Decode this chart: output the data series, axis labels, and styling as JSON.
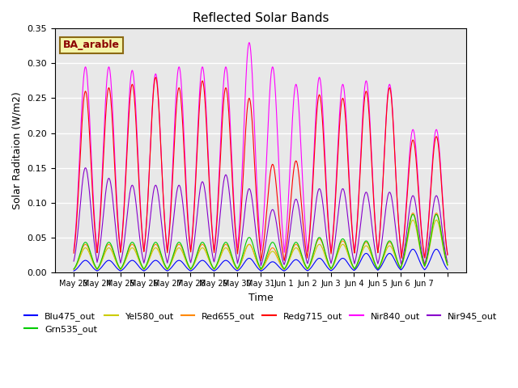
{
  "title": "Reflected Solar Bands",
  "xlabel": "Time",
  "ylabel": "Solar Raditaion (W/m2)",
  "annotation_text": "BA_arable",
  "annotation_bg": "#f5f5aa",
  "annotation_border": "#8b6914",
  "annotation_text_color": "#8b0000",
  "ylim": [
    0.0,
    0.35
  ],
  "yticks": [
    0.0,
    0.05,
    0.1,
    0.15,
    0.2,
    0.25,
    0.3,
    0.35
  ],
  "series": {
    "Blu475_out": {
      "color": "#0000ff",
      "scale": 0.018
    },
    "Grn535_out": {
      "color": "#00cc00",
      "scale": 0.043
    },
    "Yel580_out": {
      "color": "#cccc00",
      "scale": 0.038
    },
    "Red655_out": {
      "color": "#ff8800",
      "scale": 0.04
    },
    "Redg715_out": {
      "color": "#ff0000",
      "scale": 0.26
    },
    "Nir840_out": {
      "color": "#ff00ff",
      "scale": 0.295
    },
    "Nir945_out": {
      "color": "#8800cc",
      "scale": 0.13
    }
  },
  "xtick_labels": [
    "May 23",
    "May 24",
    "May 25",
    "May 26",
    "May 27",
    "May 28",
    "May 29",
    "May 30",
    "May 31",
    "Jun 1",
    "Jun 2",
    "Jun 3",
    "Jun 4",
    "Jun 5",
    "Jun 6",
    "Jun 7"
  ],
  "background_color": "#e8e8e8",
  "grid_color": "#ffffff",
  "figsize": [
    6.4,
    4.8
  ],
  "dpi": 100
}
